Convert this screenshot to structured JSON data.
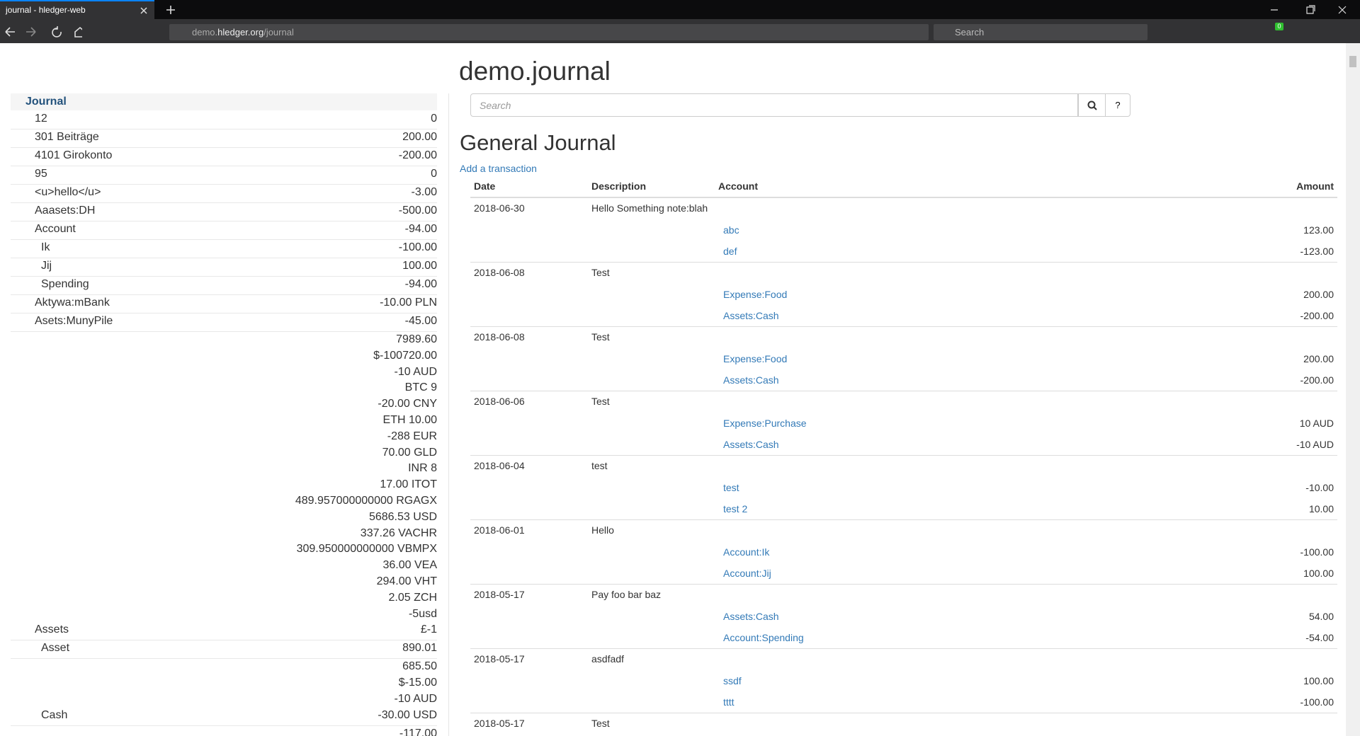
{
  "browser": {
    "tab_title": "journal - hledger-web",
    "url_parts": [
      "demo.",
      "hledger.org",
      "/journal"
    ],
    "search_placeholder": "Search",
    "badge": "0"
  },
  "sidebar": {
    "title": "Journal",
    "rows": [
      {
        "name": "12",
        "amounts": [
          "0"
        ],
        "depth": 0
      },
      {
        "name": "301 Beiträge",
        "amounts": [
          "200.00"
        ],
        "depth": 0
      },
      {
        "name": "4101 Girokonto",
        "amounts": [
          "-200.00"
        ],
        "depth": 0,
        "negative": true
      },
      {
        "name": "95",
        "amounts": [
          "0"
        ],
        "depth": 0
      },
      {
        "name": "<u>hello</u>",
        "amounts": [
          "-3.00"
        ],
        "depth": 0,
        "negative": true
      },
      {
        "name": "Aaasets:DH",
        "amounts": [
          "-500.00"
        ],
        "depth": 0,
        "negative": true
      },
      {
        "name": "Account",
        "amounts": [
          "-94.00"
        ],
        "depth": 0,
        "negative": true
      },
      {
        "name": "Ik",
        "amounts": [
          "-100.00"
        ],
        "depth": 1,
        "negative": true
      },
      {
        "name": "Jij",
        "amounts": [
          "100.00"
        ],
        "depth": 1
      },
      {
        "name": "Spending",
        "amounts": [
          "-94.00"
        ],
        "depth": 1,
        "negative": true
      },
      {
        "name": "Aktywa:mBank",
        "amounts": [
          "-10.00 PLN"
        ],
        "depth": 0,
        "negative": true
      },
      {
        "name": "Asets:MunyPile",
        "amounts": [
          "-45.00"
        ],
        "depth": 0,
        "negative": true
      },
      {
        "name": "Assets",
        "amounts": [
          "7989.60",
          "$-100720.00",
          "-10 AUD",
          "BTC 9",
          "-20.00 CNY",
          "ETH 10.00",
          "-288 EUR",
          "70.00 GLD",
          "INR 8",
          "17.00 ITOT",
          "489.957000000000 RGAGX",
          "5686.53 USD",
          "337.26 VACHR",
          "309.950000000000 VBMPX",
          "36.00 VEA",
          "294.00 VHT",
          "2.05 ZCH",
          "-5usd",
          "£-1"
        ],
        "depth": 0
      },
      {
        "name": "Asset",
        "amounts": [
          "890.01"
        ],
        "depth": 1
      },
      {
        "name": "Cash",
        "amounts": [
          "685.50",
          "$-15.00",
          "-10 AUD",
          "-30.00 USD"
        ],
        "depth": 1
      },
      {
        "amounts": [
          "-117.00"
        ],
        "depth": 1
      }
    ]
  },
  "main": {
    "title": "demo.journal",
    "search_placeholder": "Search",
    "help_button": "?",
    "heading": "General Journal",
    "add_link": "Add a transaction",
    "columns": [
      "Date",
      "Description",
      "Account",
      "Amount"
    ],
    "transactions": [
      {
        "date": "2018-06-30",
        "description": "Hello Something note:blah",
        "postings": [
          {
            "account": "abc",
            "amount": "123.00"
          },
          {
            "account": "def",
            "amount": "-123.00",
            "negative": true
          }
        ]
      },
      {
        "date": "2018-06-08",
        "description": "Test",
        "postings": [
          {
            "account": "Expense:Food",
            "amount": "200.00"
          },
          {
            "account": "Assets:Cash",
            "amount": "-200.00",
            "negative": true
          }
        ]
      },
      {
        "date": "2018-06-08",
        "description": "Test",
        "postings": [
          {
            "account": "Expense:Food",
            "amount": "200.00"
          },
          {
            "account": "Assets:Cash",
            "amount": "-200.00",
            "negative": true
          }
        ]
      },
      {
        "date": "2018-06-06",
        "description": "Test",
        "postings": [
          {
            "account": "Expense:Purchase",
            "amount": "10 AUD"
          },
          {
            "account": "Assets:Cash",
            "amount": "-10 AUD",
            "negative": true
          }
        ]
      },
      {
        "date": "2018-06-04",
        "description": "test",
        "postings": [
          {
            "account": "test",
            "amount": "-10.00",
            "negative": true
          },
          {
            "account": "test 2",
            "amount": "10.00"
          }
        ]
      },
      {
        "date": "2018-06-01",
        "description": "Hello",
        "postings": [
          {
            "account": "Account:Ik",
            "amount": "-100.00",
            "negative": true
          },
          {
            "account": "Account:Jij",
            "amount": "100.00"
          }
        ]
      },
      {
        "date": "2018-05-17",
        "description": "Pay foo bar baz",
        "postings": [
          {
            "account": "Assets:Cash",
            "amount": "54.00"
          },
          {
            "account": "Account:Spending",
            "amount": "-54.00",
            "negative": true
          }
        ]
      },
      {
        "date": "2018-05-17",
        "description": "asdfadf",
        "postings": [
          {
            "account": "ssdf",
            "amount": "100.00"
          },
          {
            "account": "tttt",
            "amount": "-100.00",
            "negative": true
          }
        ]
      },
      {
        "date": "2018-05-17",
        "description": "Test",
        "postings": []
      }
    ]
  }
}
